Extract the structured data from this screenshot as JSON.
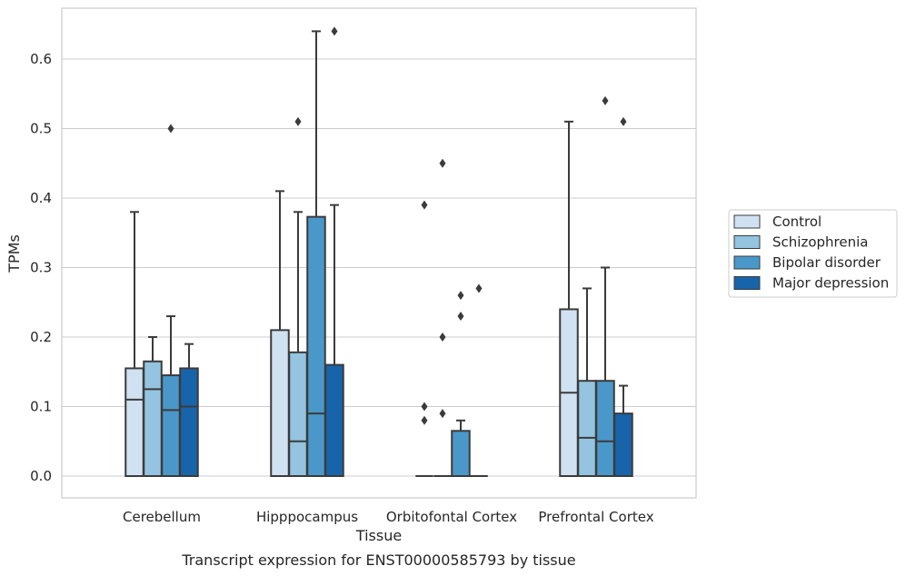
{
  "caption": "Transcript expression for ENST00000585793 by tissue",
  "chart_data": {
    "type": "box",
    "xlabel": "Tissue",
    "ylabel": "TPMs",
    "ylim": [
      -0.03,
      0.67
    ],
    "yticks": [
      0.0,
      0.1,
      0.2,
      0.3,
      0.4,
      0.5,
      0.6
    ],
    "ytick_labels": [
      "0.0",
      "0.1",
      "0.2",
      "0.3",
      "0.4",
      "0.5",
      "0.6"
    ],
    "grid": "horizontal",
    "legend_position": "right",
    "categories": [
      "Cerebellum",
      "Hipppocampus",
      "Orbitofontal Cortex",
      "Prefrontal Cortex"
    ],
    "series": [
      {
        "name": "Control",
        "color": "#d0e1f2",
        "boxes": [
          {
            "q1": 0.0,
            "median": 0.11,
            "q3": 0.155,
            "whisker_low": 0.0,
            "whisker_high": 0.38,
            "outliers": []
          },
          {
            "q1": 0.0,
            "median": 0.0,
            "q3": 0.21,
            "whisker_low": 0.0,
            "whisker_high": 0.41,
            "outliers": []
          },
          {
            "q1": 0.0,
            "median": 0.0,
            "q3": 0.0,
            "whisker_low": 0.0,
            "whisker_high": 0.0,
            "outliers": [
              0.39,
              0.1,
              0.08
            ]
          },
          {
            "q1": 0.0,
            "median": 0.12,
            "q3": 0.24,
            "whisker_low": 0.0,
            "whisker_high": 0.51,
            "outliers": []
          }
        ]
      },
      {
        "name": "Schizophrenia",
        "color": "#94c4df",
        "boxes": [
          {
            "q1": 0.0,
            "median": 0.125,
            "q3": 0.165,
            "whisker_low": 0.0,
            "whisker_high": 0.2,
            "outliers": []
          },
          {
            "q1": 0.0,
            "median": 0.05,
            "q3": 0.178,
            "whisker_low": 0.0,
            "whisker_high": 0.38,
            "outliers": [
              0.51
            ]
          },
          {
            "q1": 0.0,
            "median": 0.0,
            "q3": 0.0,
            "whisker_low": 0.0,
            "whisker_high": 0.0,
            "outliers": [
              0.45,
              0.2,
              0.09
            ]
          },
          {
            "q1": 0.0,
            "median": 0.055,
            "q3": 0.137,
            "whisker_low": 0.0,
            "whisker_high": 0.27,
            "outliers": []
          }
        ]
      },
      {
        "name": "Bipolar disorder",
        "color": "#4a98c9",
        "boxes": [
          {
            "q1": 0.0,
            "median": 0.095,
            "q3": 0.145,
            "whisker_low": 0.0,
            "whisker_high": 0.23,
            "outliers": [
              0.5
            ]
          },
          {
            "q1": 0.0,
            "median": 0.09,
            "q3": 0.373,
            "whisker_low": 0.0,
            "whisker_high": 0.64,
            "outliers": []
          },
          {
            "q1": 0.0,
            "median": 0.0,
            "q3": 0.065,
            "whisker_low": 0.0,
            "whisker_high": 0.08,
            "outliers": [
              0.26,
              0.23
            ]
          },
          {
            "q1": 0.0,
            "median": 0.05,
            "q3": 0.137,
            "whisker_low": 0.0,
            "whisker_high": 0.3,
            "outliers": [
              0.54
            ]
          }
        ]
      },
      {
        "name": "Major depression",
        "color": "#1764ab",
        "boxes": [
          {
            "q1": 0.0,
            "median": 0.1,
            "q3": 0.155,
            "whisker_low": 0.0,
            "whisker_high": 0.19,
            "outliers": []
          },
          {
            "q1": 0.0,
            "median": 0.0,
            "q3": 0.16,
            "whisker_low": 0.0,
            "whisker_high": 0.39,
            "outliers": [
              0.64
            ]
          },
          {
            "q1": 0.0,
            "median": 0.0,
            "q3": 0.0,
            "whisker_low": 0.0,
            "whisker_high": 0.0,
            "outliers": [
              0.27
            ]
          },
          {
            "q1": 0.0,
            "median": 0.0,
            "q3": 0.09,
            "whisker_low": 0.0,
            "whisker_high": 0.13,
            "outliers": [
              0.51
            ]
          }
        ]
      }
    ],
    "colors": {
      "grid": "#cccccc",
      "frame": "#cccccc",
      "line": "#3b3b3b",
      "outlier": "#3b3b3b"
    }
  }
}
